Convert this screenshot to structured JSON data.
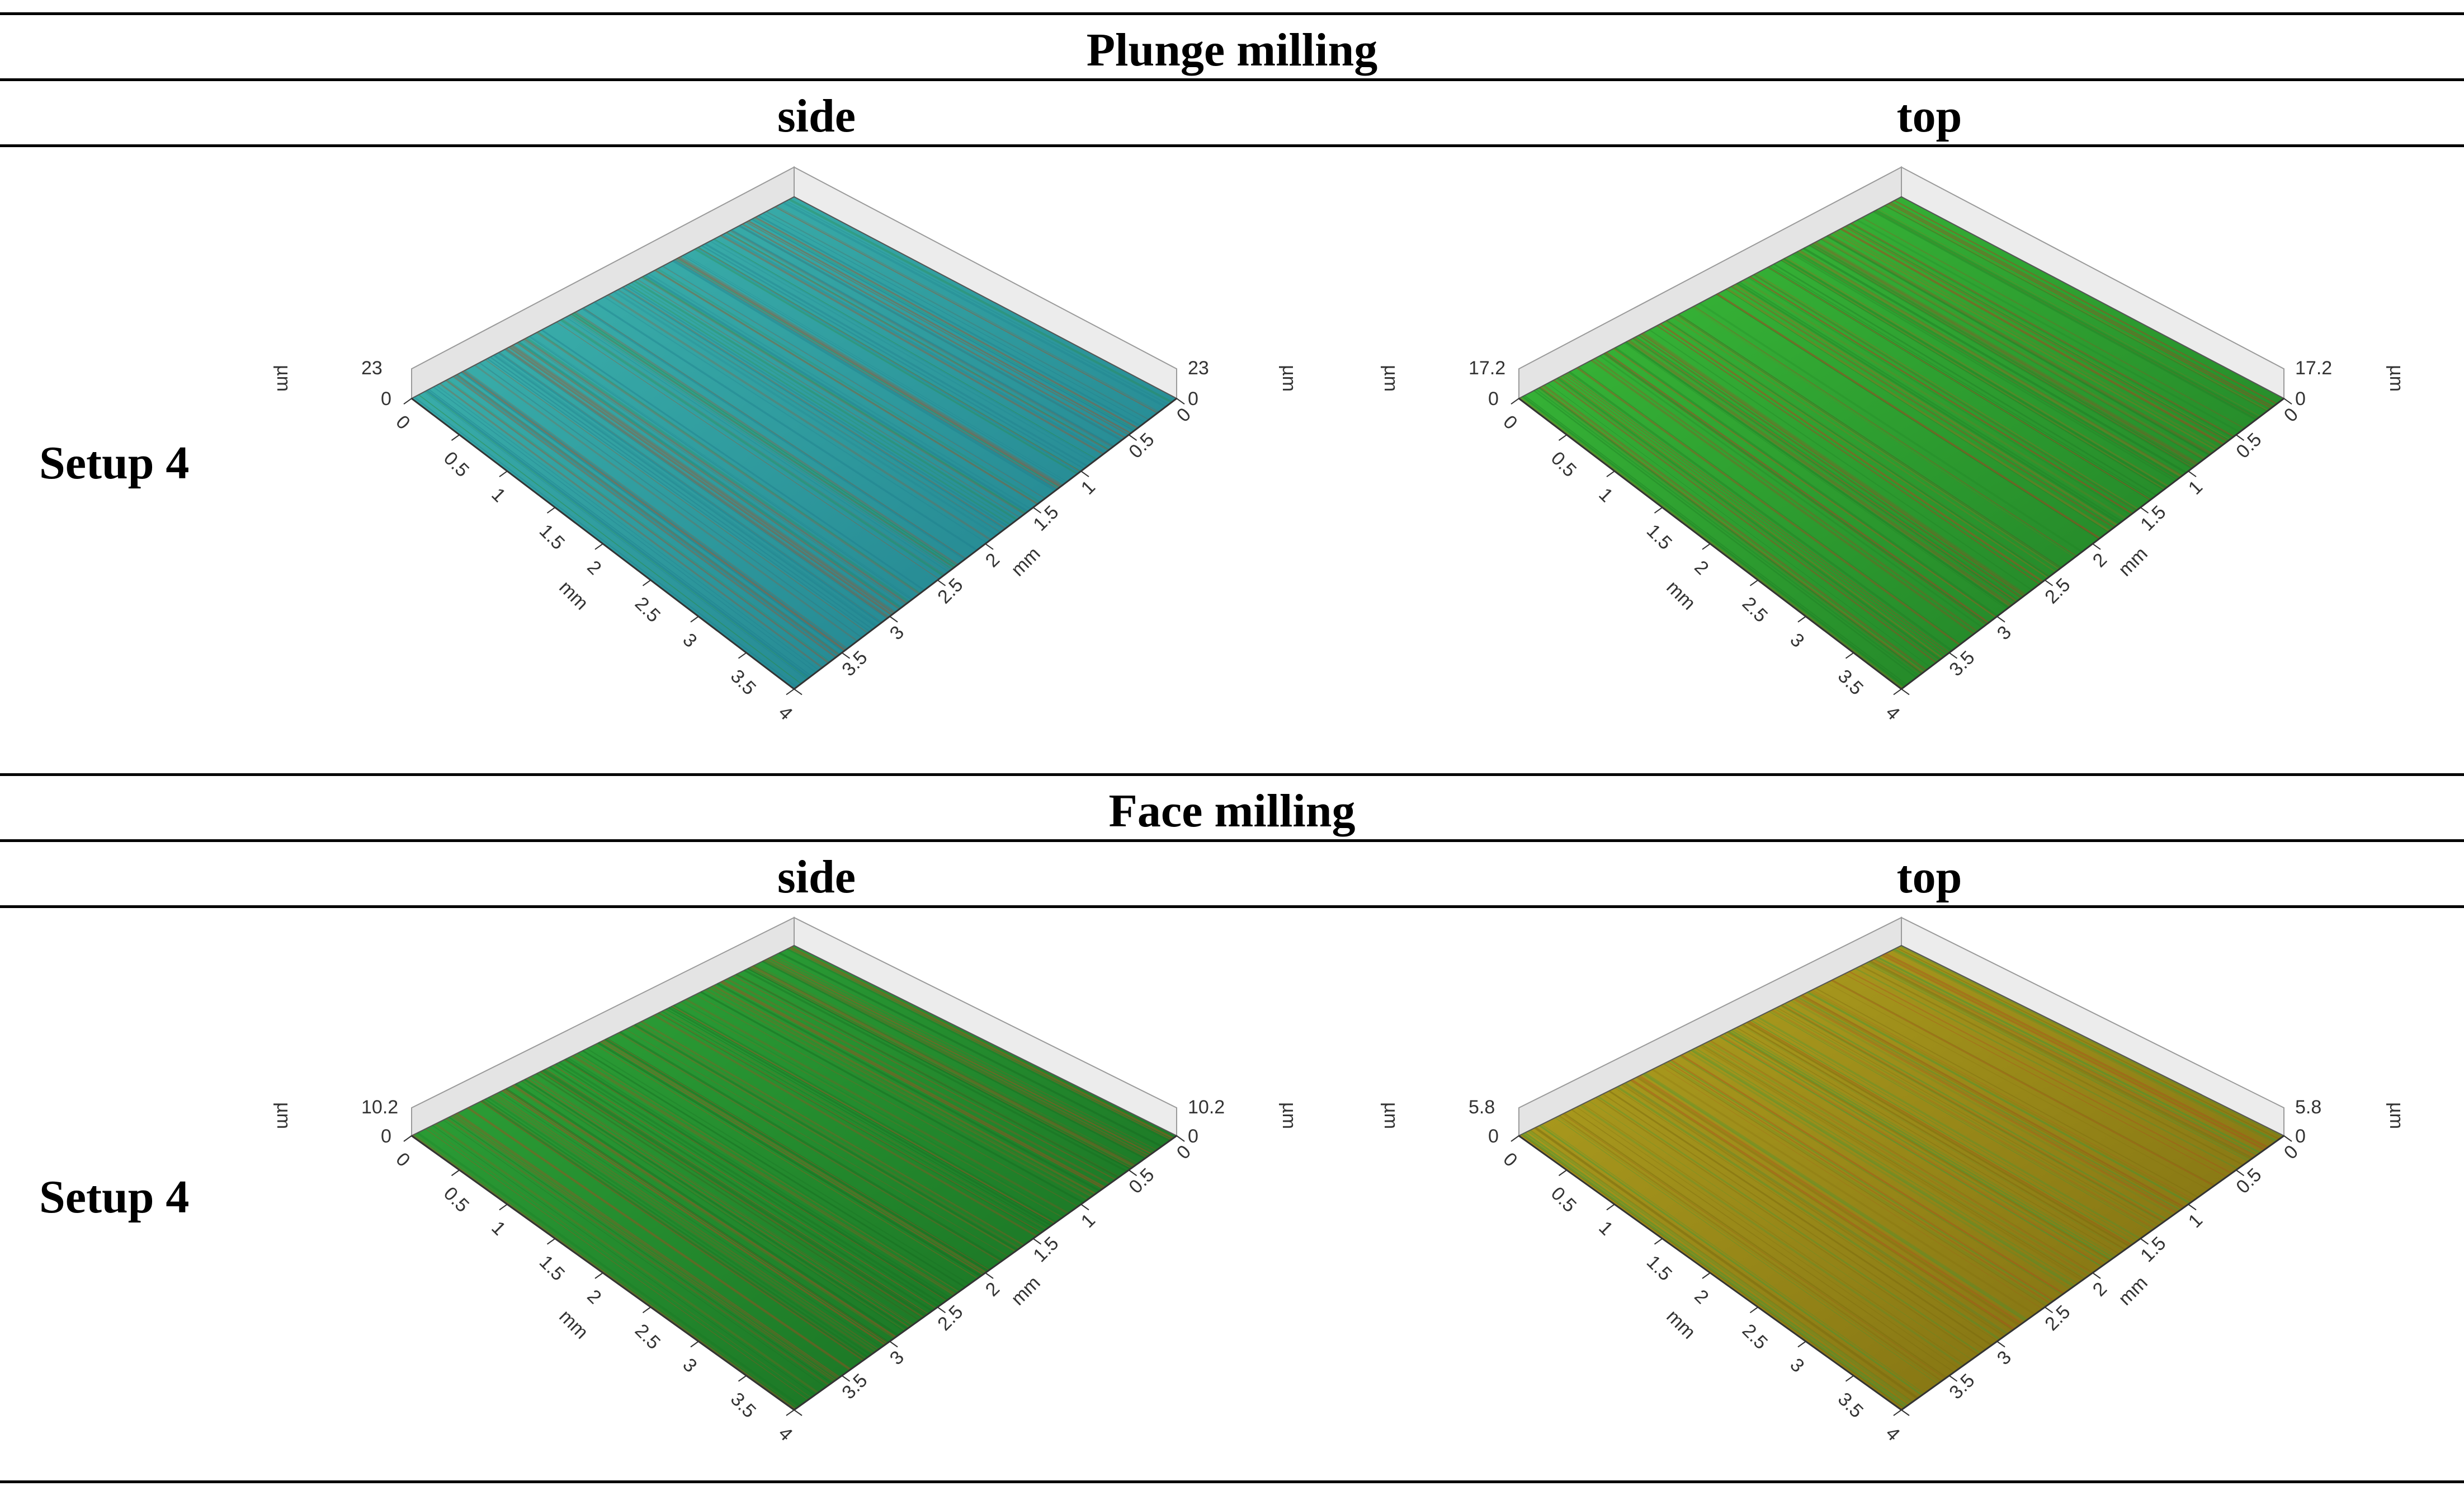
{
  "sections": [
    {
      "title": "Plunge milling",
      "columns": [
        "side",
        "top"
      ],
      "row_label": "Setup 4",
      "plots": [
        {
          "z_max": "23",
          "z_min": "0",
          "z_unit": "µm",
          "xy_unit": "mm",
          "ticks": [
            "0",
            "0.5",
            "1",
            "1.5",
            "2",
            "2.5",
            "3",
            "3.5",
            "4"
          ],
          "surface_color": "#3fb8b0",
          "surface_dark": "#1f7d8c",
          "streak_color": "#2e8b3a",
          "accent": "#b04a20"
        },
        {
          "z_max": "17.2",
          "z_min": "0",
          "z_unit": "µm",
          "xy_unit": "mm",
          "ticks": [
            "0",
            "0.5",
            "1",
            "1.5",
            "2",
            "2.5",
            "3",
            "3.5",
            "4"
          ],
          "surface_color": "#3bbf3a",
          "surface_dark": "#1f7a25",
          "streak_color": "#a06a20",
          "accent": "#c03020"
        }
      ]
    },
    {
      "title": "Face milling",
      "columns": [
        "side",
        "top"
      ],
      "row_label": "Setup 4",
      "plots": [
        {
          "z_max": "10.2",
          "z_min": "0",
          "z_unit": "µm",
          "xy_unit": "mm",
          "ticks": [
            "0",
            "0.5",
            "1",
            "1.5",
            "2",
            "2.5",
            "3",
            "3.5",
            "4"
          ],
          "surface_color": "#2fa83a",
          "surface_dark": "#176a20",
          "streak_color": "#9a5a20",
          "accent": "#c04020"
        },
        {
          "z_max": "5.8",
          "z_min": "0",
          "z_unit": "µm",
          "xy_unit": "mm",
          "ticks": [
            "0",
            "0.5",
            "1",
            "1.5",
            "2",
            "2.5",
            "3",
            "3.5",
            "4"
          ],
          "surface_color": "#b3a320",
          "surface_dark": "#7a6a10",
          "streak_color": "#b04a20",
          "accent": "#3a9a3a"
        }
      ]
    }
  ]
}
